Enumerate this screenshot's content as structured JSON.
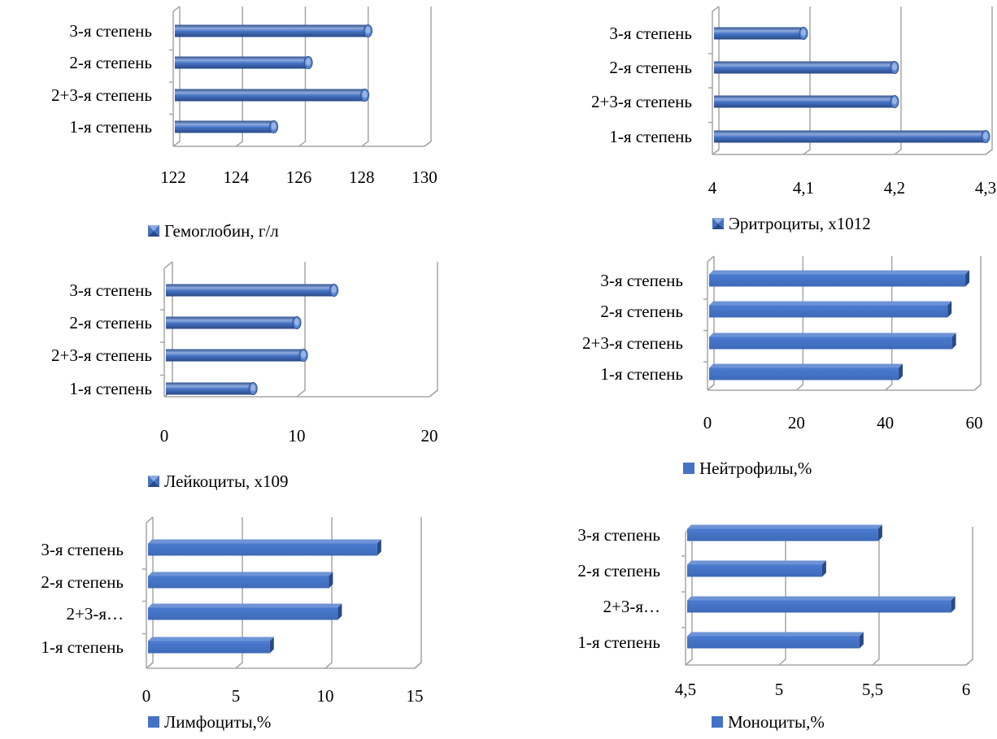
{
  "colors": {
    "bar_main": "#4472C4",
    "bar_dark": "#2F528F",
    "bar_light": "#8FAADC",
    "grid": "#A6A6A6"
  },
  "chart_data": [
    {
      "type": "bar",
      "orientation": "horizontal",
      "style": "cylinder",
      "categories": [
        "3-я степень",
        "2-я степень",
        "2+3-я степень",
        "1-я степень"
      ],
      "series": [
        {
          "name": "Гемоглобин, г/л",
          "values": [
            128.2,
            126.3,
            128.1,
            125.2
          ]
        }
      ],
      "xlim": [
        122,
        130
      ],
      "xticks": [
        "122",
        "124",
        "126",
        "128",
        "130"
      ],
      "grid": true,
      "legend_position": "bottom"
    },
    {
      "type": "bar",
      "orientation": "horizontal",
      "style": "cylinder",
      "categories": [
        "3-я степень",
        "2-я степень",
        "2+3-я степень",
        "1-я степень"
      ],
      "series": [
        {
          "name": "Эритроциты, х1012",
          "values": [
            4.1,
            4.2,
            4.2,
            4.3
          ]
        }
      ],
      "xlim": [
        4,
        4.3
      ],
      "xticks": [
        "4",
        "4,1",
        "4,2",
        "4,3"
      ],
      "grid": true,
      "legend_position": "bottom"
    },
    {
      "type": "bar",
      "orientation": "horizontal",
      "style": "cylinder",
      "categories": [
        "3-я степень",
        "2-я степень",
        "2+3-я степень",
        "1-я степень"
      ],
      "series": [
        {
          "name": "Лейкоциты, х109",
          "values": [
            12.8,
            10.0,
            10.5,
            6.7
          ]
        }
      ],
      "xlim": [
        0,
        20
      ],
      "xticks": [
        "0",
        "10",
        "20"
      ],
      "grid": true,
      "legend_position": "bottom"
    },
    {
      "type": "bar",
      "orientation": "horizontal",
      "style": "box",
      "categories": [
        "3-я степень",
        "2-я степень",
        "2+3-я степень",
        "1-я степень"
      ],
      "series": [
        {
          "name": "Нейтрофилы,%",
          "values": [
            58,
            54,
            55,
            43
          ]
        }
      ],
      "xlim": [
        0,
        60
      ],
      "xticks": [
        "0",
        "20",
        "40",
        "60"
      ],
      "grid": true,
      "legend_position": "bottom"
    },
    {
      "type": "bar",
      "orientation": "horizontal",
      "style": "box",
      "categories": [
        "3-я степень",
        "2-я степень",
        "2+3-я…",
        "1-я степень"
      ],
      "series": [
        {
          "name": "Лимфоциты,%",
          "values": [
            12.9,
            10.2,
            10.7,
            6.9
          ]
        }
      ],
      "xlim": [
        0,
        15
      ],
      "xticks": [
        "0",
        "5",
        "10",
        "15"
      ],
      "grid": true,
      "legend_position": "bottom"
    },
    {
      "type": "bar",
      "orientation": "horizontal",
      "style": "box",
      "categories": [
        "3-я степень",
        "2-я степень",
        "2+3-я…",
        "1-я степень"
      ],
      "series": [
        {
          "name": "Моноциты,%",
          "values": [
            5.53,
            5.23,
            5.92,
            5.43
          ]
        }
      ],
      "xlim": [
        4.5,
        6
      ],
      "xticks": [
        "4,5",
        "5",
        "5,5",
        "6"
      ],
      "grid": true,
      "legend_position": "bottom"
    }
  ]
}
